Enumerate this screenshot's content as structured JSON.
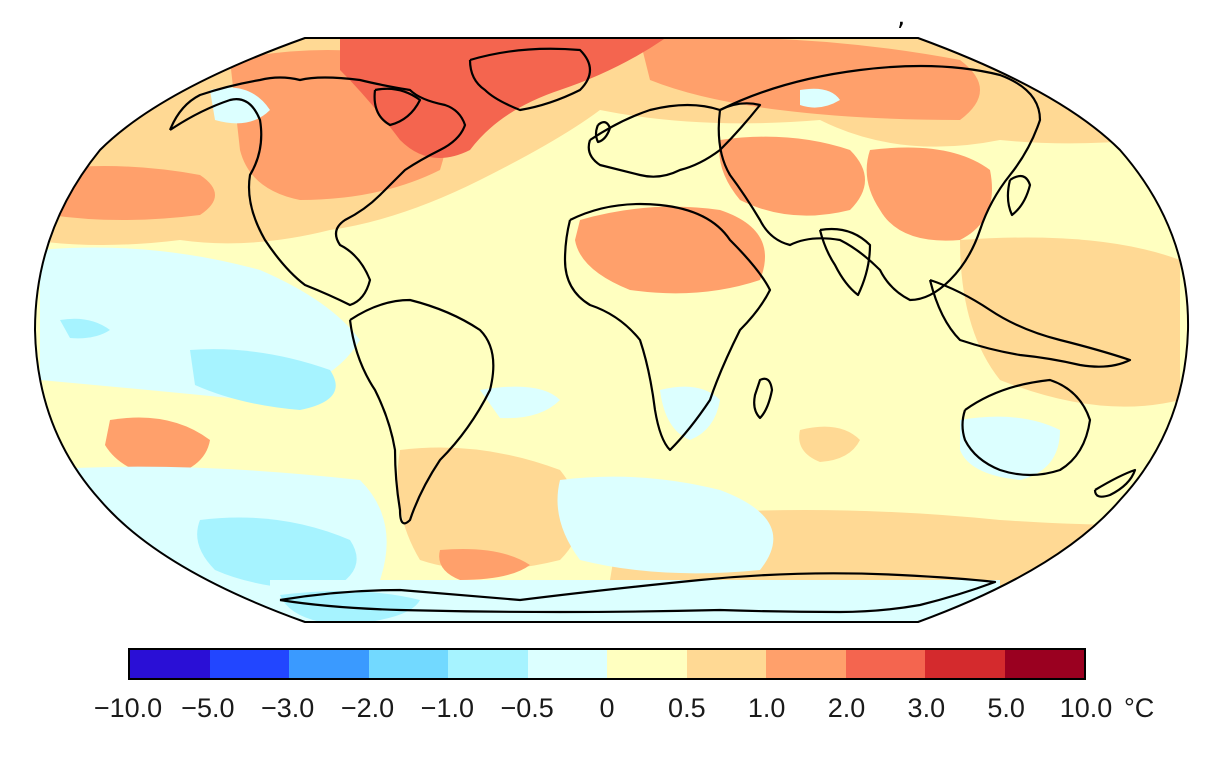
{
  "stray_mark": ",",
  "map": {
    "projection": "Robinson",
    "colors": {
      "base": "#ffffc0",
      "land_outline": "#000000"
    },
    "anomaly_regions": [
      {
        "region": "Arctic / Greenland / Baffin",
        "bin": "3.0"
      },
      {
        "region": "Northern Canada",
        "bin": "2.0"
      },
      {
        "region": "Siberia",
        "bin": "2.0"
      },
      {
        "region": "Sahara / Middle East",
        "bin": "1.0"
      },
      {
        "region": "Central Asia / China",
        "bin": "1.0"
      },
      {
        "region": "North Pacific (west)",
        "bin": "1.0"
      },
      {
        "region": "Southeast Pacific patch",
        "bin": "1.0"
      },
      {
        "region": "Southern Atlantic",
        "bin": "0.5"
      },
      {
        "region": "Tropical East Pacific",
        "bin": "-0.5"
      },
      {
        "region": "South Pacific",
        "bin": "-0.5"
      },
      {
        "region": "Southern Ocean",
        "bin": "-0.5"
      },
      {
        "region": "Antarctica coast (Ross Sea)",
        "bin": "-1.0"
      }
    ]
  },
  "colorbar": {
    "bins": [
      {
        "color": "#2a0fd6"
      },
      {
        "color": "#2246ff"
      },
      {
        "color": "#3a9aff"
      },
      {
        "color": "#72d9ff"
      },
      {
        "color": "#a6f3ff"
      },
      {
        "color": "#dcffff"
      },
      {
        "color": "#ffffc0"
      },
      {
        "color": "#ffd994"
      },
      {
        "color": "#ffa06b"
      },
      {
        "color": "#f4654f"
      },
      {
        "color": "#d42a2d"
      },
      {
        "color": "#9a0020"
      }
    ],
    "ticks": [
      "−10.0",
      "−5.0",
      "−3.0",
      "−2.0",
      "−1.0",
      "−0.5",
      "0",
      "0.5",
      "1.0",
      "2.0",
      "3.0",
      "5.0",
      "10.0"
    ],
    "unit": "°C"
  }
}
